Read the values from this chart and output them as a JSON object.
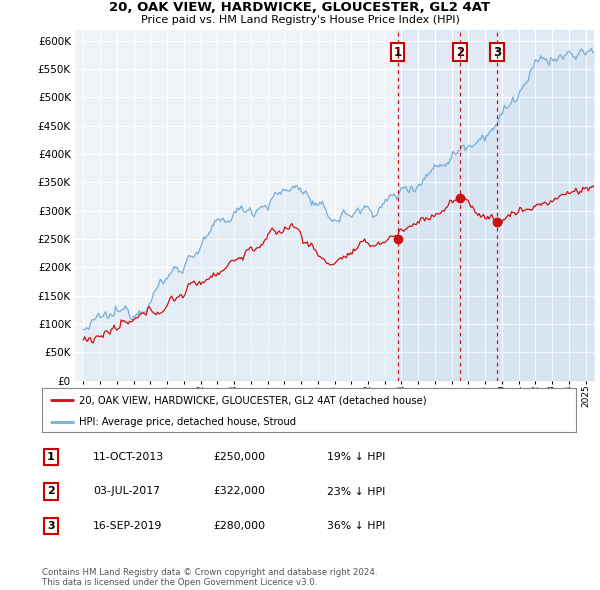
{
  "title": "20, OAK VIEW, HARDWICKE, GLOUCESTER, GL2 4AT",
  "subtitle": "Price paid vs. HM Land Registry's House Price Index (HPI)",
  "ylim": [
    0,
    620000
  ],
  "yticks": [
    0,
    50000,
    100000,
    150000,
    200000,
    250000,
    300000,
    350000,
    400000,
    450000,
    500000,
    550000,
    600000
  ],
  "hpi_color": "#7aaed6",
  "hpi_fill_color": "#ddeeff",
  "price_color": "#cc1111",
  "vline_color": "#cc0000",
  "bg_color": "#eef3f8",
  "transactions": [
    {
      "label": "1",
      "x": 2013.78,
      "price": 250000
    },
    {
      "label": "2",
      "x": 2017.5,
      "price": 322000
    },
    {
      "label": "3",
      "x": 2019.71,
      "price": 280000
    }
  ],
  "legend_entries": [
    "20, OAK VIEW, HARDWICKE, GLOUCESTER, GL2 4AT (detached house)",
    "HPI: Average price, detached house, Stroud"
  ],
  "table_rows": [
    [
      "1",
      "11-OCT-2013",
      "£250,000",
      "19% ↓ HPI"
    ],
    [
      "2",
      "03-JUL-2017",
      "£322,000",
      "23% ↓ HPI"
    ],
    [
      "3",
      "16-SEP-2019",
      "£280,000",
      "36% ↓ HPI"
    ]
  ],
  "footer": "Contains HM Land Registry data © Crown copyright and database right 2024.\nThis data is licensed under the Open Government Licence v3.0."
}
